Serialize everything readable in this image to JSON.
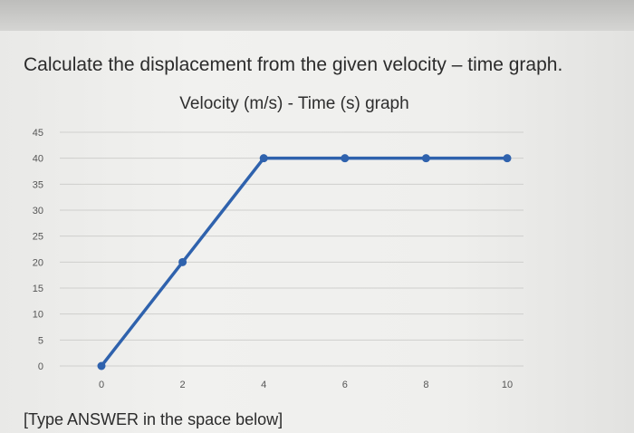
{
  "question": "Calculate the displacement from the given velocity – time graph.",
  "answer_hint": "[Type ANSWER in the space below]",
  "chart_data": {
    "type": "line",
    "title": "Velocity (m/s) - Time (s) graph",
    "x": [
      0,
      2,
      4,
      6,
      8,
      10
    ],
    "series": [
      {
        "values": [
          0,
          20,
          40,
          40,
          40,
          40
        ],
        "color": "#2f62ad"
      }
    ],
    "x_ticks": [
      "0",
      "2",
      "4",
      "6",
      "8",
      "10"
    ],
    "y_ticks": [
      "45",
      "40",
      "35",
      "30",
      "25",
      "20",
      "15",
      "10",
      "5",
      "0"
    ],
    "ylim": [
      0,
      45
    ],
    "xlim": [
      0,
      10
    ],
    "grid": true,
    "legend": "none"
  }
}
